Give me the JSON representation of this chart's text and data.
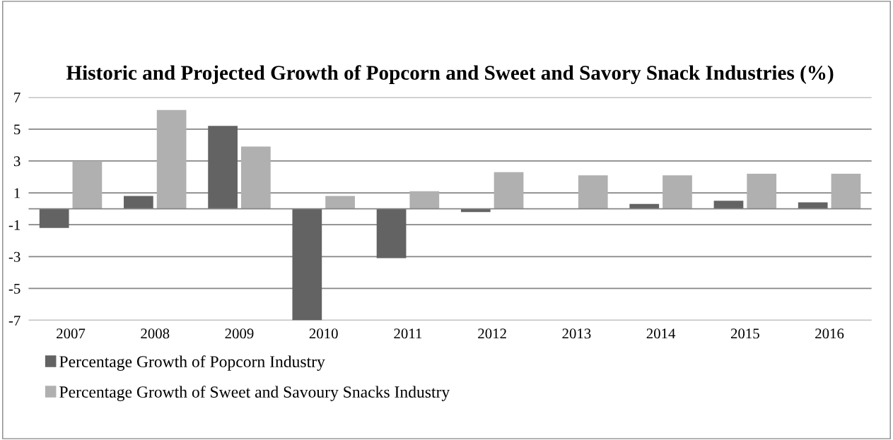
{
  "chart_data": {
    "type": "bar",
    "title": "Historic and Projected Growth of Popcorn and Sweet and Savory Snack Industries (%)",
    "categories": [
      "2007",
      "2008",
      "2009",
      "2010",
      "2011",
      "2012",
      "2013",
      "2014",
      "2015",
      "2016"
    ],
    "series": [
      {
        "name": "Percentage Growth of Popcorn Industry",
        "color": "#636363",
        "values": [
          -1.2,
          0.8,
          5.2,
          -7.0,
          -3.1,
          -0.2,
          0,
          0.3,
          0.5,
          0.4
        ]
      },
      {
        "name": "Percentage Growth of Sweet and Savoury Snacks Industry",
        "color": "#b0b0b0",
        "values": [
          3.0,
          6.2,
          3.9,
          0.8,
          1.1,
          2.3,
          2.1,
          2.1,
          2.2,
          2.2
        ]
      }
    ],
    "ylim": [
      -7,
      7
    ],
    "yticks": [
      -7,
      -5,
      -3,
      -1,
      1,
      3,
      5,
      7
    ],
    "grid": "y",
    "legend": "bottom"
  }
}
